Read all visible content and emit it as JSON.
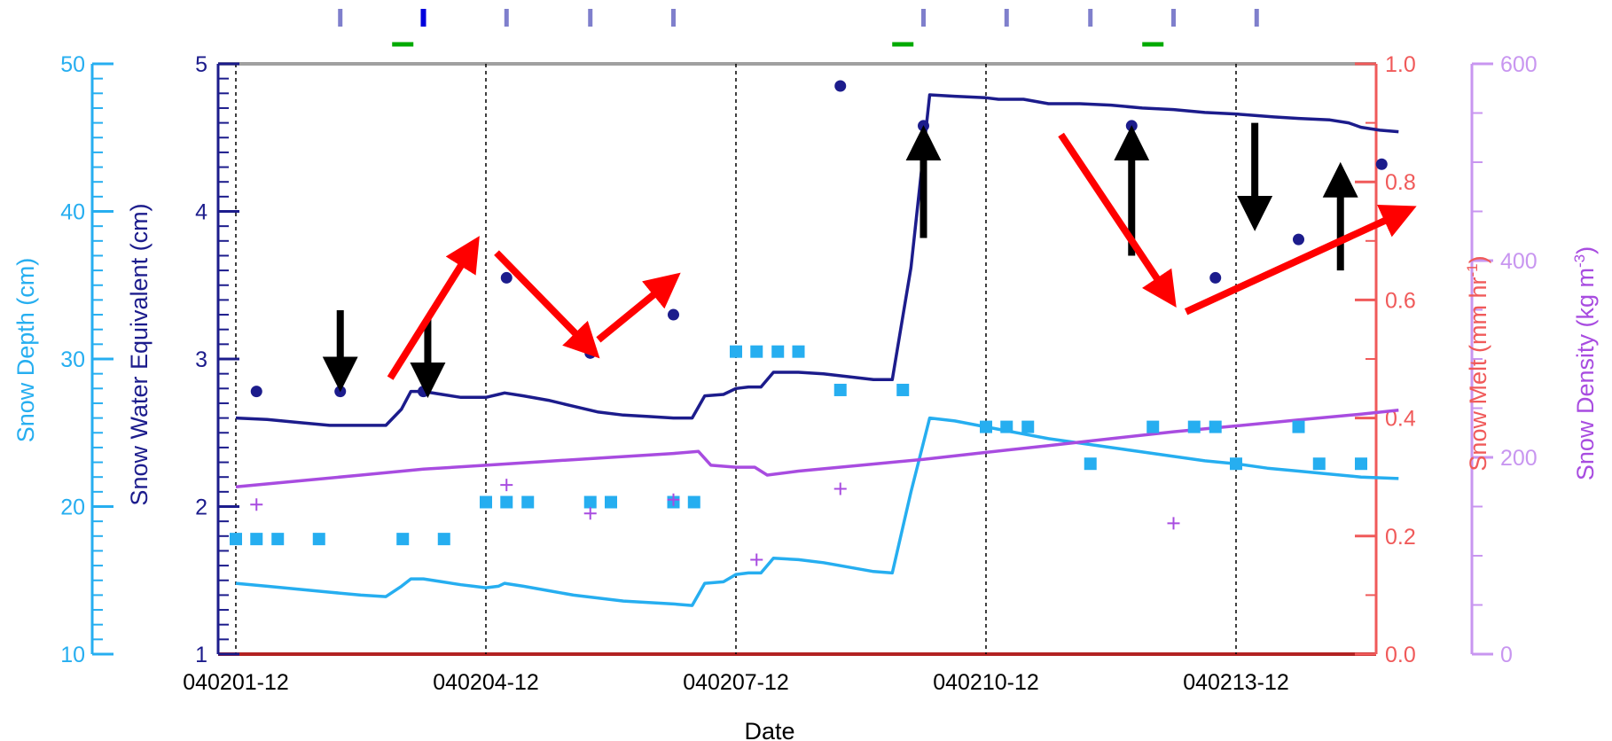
{
  "colors": {
    "swe": "#1c1c8c",
    "depth": "#26aef0",
    "melt": "#f05a5a",
    "melt_line": "#b22222",
    "density": "#a84ce0",
    "density_axis": "#c896f0",
    "arrow_black": "#000000",
    "arrow_red": "#ff0000",
    "top_marks": "#7f7fcc",
    "top_mark_strong": "#0000dd",
    "top_marks_green": "#00aa00",
    "frame": "#a0a0a0",
    "grid": "#000000"
  },
  "chart_data": {
    "type": "line",
    "xlabel": "Date",
    "x_range": [
      0.0,
      18.6
    ],
    "x_ticks": [
      {
        "x": 0.0,
        "label": "040201-12"
      },
      {
        "x": 4.0,
        "label": "040204-12"
      },
      {
        "x": 8.0,
        "label": "040207-12"
      },
      {
        "x": 12.0,
        "label": "040210-12"
      },
      {
        "x": 16.0,
        "label": "040213-12"
      }
    ],
    "vertical_gridlines": [
      0.0,
      4.0,
      8.0,
      12.0,
      16.0
    ],
    "axes": {
      "snow_depth": {
        "label": "Snow Depth (cm)",
        "range": [
          10,
          50
        ],
        "ticks": [
          "10",
          "20",
          "30",
          "40",
          "50"
        ],
        "tick_values": [
          10,
          20,
          30,
          40,
          50
        ],
        "side": "left-outer"
      },
      "swe": {
        "label": "Snow Water Equivalent (cm)",
        "range": [
          1,
          5
        ],
        "ticks": [
          "1",
          "2",
          "3",
          "4",
          "5"
        ],
        "tick_values": [
          1,
          2,
          3,
          4,
          5
        ],
        "side": "left"
      },
      "melt": {
        "label_main": "Snow Melt (mm hr",
        "label_sup": "-1",
        "label_end": ")",
        "range": [
          0.0,
          1.0
        ],
        "ticks": [
          "0.0",
          "0.2",
          "0.4",
          "0.6",
          "0.8",
          "1.0"
        ],
        "tick_values": [
          0.0,
          0.2,
          0.4,
          0.6,
          0.8,
          1.0
        ],
        "side": "right"
      },
      "density": {
        "label_main": "Snow Density (kg m",
        "label_sup": "-3",
        "label_end": ")",
        "range": [
          0,
          600
        ],
        "ticks": [
          "0",
          "200",
          "400",
          "600"
        ],
        "tick_values": [
          0,
          200,
          400,
          600
        ],
        "side": "right-outer"
      }
    },
    "series": [
      {
        "axis": "swe",
        "style": "line",
        "x": [
          0.0,
          0.5,
          1.0,
          1.5,
          2.0,
          2.4,
          2.65,
          2.8,
          3.0,
          3.3,
          3.6,
          3.8,
          4.0,
          4.2,
          4.3,
          4.6,
          5.0,
          5.4,
          5.8,
          6.2,
          6.6,
          7.0,
          7.3,
          7.5,
          7.8,
          8.0,
          8.2,
          8.4,
          8.6,
          9.0,
          9.4,
          9.8,
          10.2,
          10.5,
          10.8,
          11.1,
          11.5,
          12.0,
          12.2,
          12.6,
          13.0,
          13.5,
          14.0,
          14.5,
          15.0,
          15.5,
          16.0,
          16.3,
          16.6,
          17.0,
          17.5,
          17.8,
          18.0,
          18.3,
          18.6
        ],
        "y": [
          2.6,
          2.59,
          2.57,
          2.55,
          2.55,
          2.55,
          2.66,
          2.78,
          2.78,
          2.76,
          2.74,
          2.74,
          2.74,
          2.76,
          2.77,
          2.75,
          2.72,
          2.68,
          2.64,
          2.62,
          2.61,
          2.6,
          2.6,
          2.75,
          2.76,
          2.8,
          2.81,
          2.81,
          2.91,
          2.91,
          2.9,
          2.88,
          2.86,
          2.86,
          3.62,
          4.79,
          4.78,
          4.77,
          4.76,
          4.76,
          4.73,
          4.73,
          4.72,
          4.7,
          4.69,
          4.67,
          4.66,
          4.65,
          4.64,
          4.63,
          4.62,
          4.6,
          4.57,
          4.55,
          4.54
        ]
      },
      {
        "axis": "snow_depth",
        "style": "line",
        "x": [
          0.0,
          0.5,
          1.0,
          1.5,
          2.0,
          2.4,
          2.65,
          2.8,
          3.0,
          3.3,
          3.6,
          3.8,
          4.0,
          4.2,
          4.3,
          4.6,
          5.0,
          5.4,
          5.8,
          6.2,
          6.6,
          7.0,
          7.3,
          7.5,
          7.8,
          8.0,
          8.2,
          8.4,
          8.6,
          9.0,
          9.4,
          9.8,
          10.2,
          10.5,
          10.8,
          11.1,
          11.5,
          12.0,
          12.5,
          13.0,
          13.5,
          14.0,
          14.5,
          15.0,
          15.5,
          16.0,
          16.5,
          17.0,
          17.5,
          18.0,
          18.6
        ],
        "y": [
          14.8,
          14.6,
          14.4,
          14.2,
          14.0,
          13.9,
          14.6,
          15.1,
          15.1,
          14.9,
          14.7,
          14.6,
          14.5,
          14.6,
          14.8,
          14.6,
          14.3,
          14.0,
          13.8,
          13.6,
          13.5,
          13.4,
          13.3,
          14.8,
          14.9,
          15.4,
          15.5,
          15.5,
          16.5,
          16.4,
          16.2,
          15.9,
          15.6,
          15.5,
          21.0,
          26.0,
          25.8,
          25.4,
          25.0,
          24.6,
          24.3,
          24.0,
          23.7,
          23.4,
          23.1,
          22.9,
          22.6,
          22.4,
          22.2,
          22.0,
          21.9
        ]
      },
      {
        "axis": "density",
        "style": "line",
        "x": [
          0.0,
          1.0,
          2.0,
          3.0,
          4.0,
          5.0,
          6.0,
          7.0,
          7.4,
          7.6,
          8.0,
          8.3,
          8.5,
          9.0,
          10.0,
          11.0,
          12.0,
          13.0,
          14.0,
          15.0,
          16.0,
          17.0,
          18.0,
          18.6
        ],
        "y": [
          170,
          176,
          182,
          188,
          192,
          196,
          200,
          204,
          206,
          192,
          190,
          190,
          182,
          186,
          192,
          198,
          205,
          212,
          219,
          226,
          232,
          238,
          244,
          248
        ]
      },
      {
        "axis": "melt",
        "style": "line",
        "x": [
          0.0,
          18.6
        ],
        "y": [
          0.0,
          0.0
        ]
      },
      {
        "axis": "swe",
        "style": "circle",
        "x": [
          0.33,
          1.67,
          3.0,
          4.33,
          5.67,
          7.0,
          9.67,
          11.0,
          14.33,
          15.67,
          17.0,
          18.33
        ],
        "y": [
          2.78,
          2.78,
          2.78,
          3.55,
          3.04,
          3.3,
          4.85,
          4.58,
          4.58,
          3.55,
          3.81,
          4.32
        ]
      },
      {
        "axis": "snow_depth",
        "style": "square",
        "x": [
          0.0,
          0.33,
          0.67,
          1.33,
          2.67,
          3.33,
          4.0,
          4.33,
          4.67,
          5.67,
          6.0,
          7.0,
          7.33,
          8.0,
          8.33,
          8.67,
          9.0,
          9.67,
          10.67,
          12.0,
          12.33,
          12.67,
          13.67,
          14.67,
          15.33,
          15.67,
          16.0,
          17.0,
          17.33,
          18.0
        ],
        "y": [
          17.8,
          17.8,
          17.8,
          17.8,
          17.8,
          17.8,
          20.3,
          20.3,
          20.3,
          20.3,
          20.3,
          20.3,
          20.3,
          30.5,
          30.5,
          30.5,
          30.5,
          27.9,
          27.9,
          25.4,
          25.4,
          25.4,
          22.9,
          25.4,
          25.4,
          25.4,
          22.9,
          25.4,
          22.9,
          22.9
        ]
      },
      {
        "axis": "density",
        "style": "plus",
        "x": [
          0.33,
          4.33,
          5.67,
          7.0,
          8.33,
          9.67,
          15.0
        ],
        "y": [
          152,
          172,
          143,
          157,
          96,
          168,
          133
        ]
      }
    ],
    "top_marks": {
      "x": [
        1.67,
        3.0,
        4.33,
        5.67,
        7.0,
        11.0,
        12.33,
        13.67,
        15.0,
        16.33
      ],
      "strong": 3.0,
      "green_x": [
        2.67,
        10.67,
        14.67
      ]
    },
    "annotations": [
      {
        "type": "arrow",
        "color": "black",
        "x1": 1.67,
        "y1": 3.33,
        "x2": 1.67,
        "y2": 2.91
      },
      {
        "type": "arrow",
        "color": "black",
        "x1": 3.07,
        "y1": 3.28,
        "x2": 3.07,
        "y2": 2.87
      },
      {
        "type": "arrow",
        "color": "black",
        "x1": 11.0,
        "y1": 3.82,
        "x2": 11.0,
        "y2": 4.45
      },
      {
        "type": "arrow",
        "color": "black",
        "x1": 14.33,
        "y1": 3.7,
        "x2": 14.33,
        "y2": 4.45
      },
      {
        "type": "arrow",
        "color": "black",
        "x1": 16.3,
        "y1": 4.6,
        "x2": 16.3,
        "y2": 4.0
      },
      {
        "type": "arrow",
        "color": "black",
        "x1": 17.67,
        "y1": 3.6,
        "x2": 17.67,
        "y2": 4.2
      },
      {
        "type": "arrow",
        "color": "red",
        "x1": 2.47,
        "y1": 2.87,
        "x2": 3.73,
        "y2": 3.72
      },
      {
        "type": "arrow",
        "color": "red",
        "x1": 4.17,
        "y1": 3.72,
        "x2": 5.6,
        "y2": 3.1
      },
      {
        "type": "arrow",
        "color": "red",
        "x1": 5.8,
        "y1": 3.13,
        "x2": 6.87,
        "y2": 3.5
      },
      {
        "type": "arrow",
        "color": "red",
        "x1": 13.2,
        "y1": 4.52,
        "x2": 14.87,
        "y2": 3.46
      },
      {
        "type": "arrow",
        "color": "red",
        "x1": 15.2,
        "y1": 3.32,
        "x2": 18.6,
        "y2": 3.98
      }
    ]
  }
}
